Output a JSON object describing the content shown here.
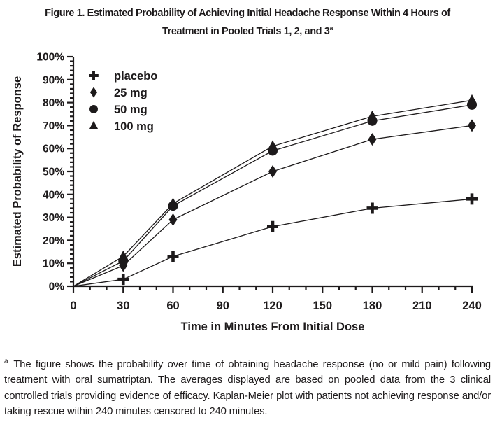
{
  "figure": {
    "title_line1": "Figure 1. Estimated Probability of Achieving Initial Headache Response Within 4 Hours of",
    "title_line2": "Treatment in Pooled Trials 1, 2, and 3",
    "title_superscript": "a"
  },
  "chart_data": {
    "type": "line",
    "title": "",
    "xlabel": "Time in Minutes From Initial Dose",
    "ylabel": "Estimated Probability of Response",
    "xlim": [
      0,
      240
    ],
    "ylim": [
      0,
      100
    ],
    "x_major_ticks": [
      0,
      30,
      60,
      90,
      120,
      150,
      180,
      210,
      240
    ],
    "x_minor_step": 10,
    "y_major_step": 10,
    "y_minor_step": 2,
    "y_tick_suffix": "%",
    "grid": false,
    "legend_position": "upper-left-inside",
    "line_color": "#1d1a1b",
    "x": [
      0,
      30,
      60,
      120,
      180,
      240
    ],
    "series": [
      {
        "name": "placebo",
        "marker": "plus",
        "values": [
          0,
          3,
          13,
          26,
          34,
          38
        ]
      },
      {
        "name": "25 mg",
        "marker": "diamond",
        "values": [
          0,
          9,
          29,
          50,
          64,
          70
        ]
      },
      {
        "name": "50 mg",
        "marker": "circle",
        "values": [
          0,
          11,
          35,
          59,
          72,
          79
        ]
      },
      {
        "name": "100 mg",
        "marker": "triangle",
        "values": [
          0,
          13,
          36,
          61,
          74,
          81
        ]
      }
    ]
  },
  "footnote": {
    "marker": "a",
    "text": "The figure shows the probability over time of obtaining headache response (no or mild pain) following treatment with oral sumatriptan. The averages displayed are based on pooled data from the 3 clinical controlled trials providing evidence of efficacy. Kaplan-Meier plot with patients not achieving response and/or taking rescue within 240 minutes censored to 240 minutes."
  }
}
